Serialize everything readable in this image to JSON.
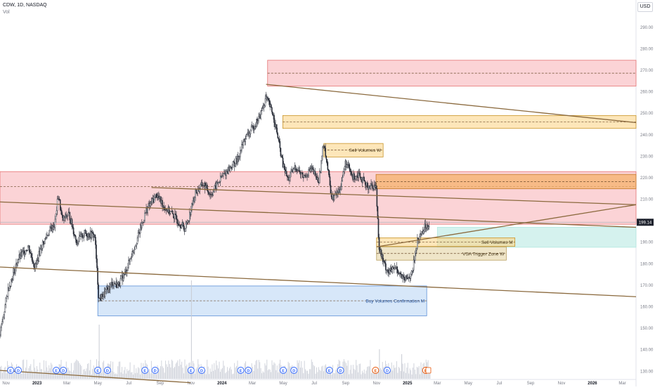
{
  "header": {
    "symbol_line": "CDW, 1D, NASDAQ",
    "volume_label": "Vol",
    "currency": "USD"
  },
  "chart_data": {
    "type": "candlestick",
    "price_axis": {
      "ticks": [
        "290.00",
        "280.00",
        "270.00",
        "260.00",
        "250.00",
        "240.00",
        "230.00",
        "220.00",
        "210.00",
        "200.00",
        "190.00",
        "180.00",
        "170.00",
        "160.00",
        "150.00",
        "140.00",
        "130.00"
      ],
      "range": [
        126,
        296
      ]
    },
    "current_price": {
      "value": 199.14,
      "label": "199.14"
    },
    "time_axis": {
      "ticks": [
        "Nov",
        "2023",
        "Mar",
        "May",
        "Jul",
        "Sep",
        "Nov",
        "2024",
        "Mar",
        "May",
        "Jul",
        "Sep",
        "Nov",
        "2025",
        "Mar",
        "May",
        "Jul",
        "Sep",
        "Nov",
        "2026",
        "Mar"
      ],
      "range": [
        "2022-10-20",
        "2026-03-28"
      ]
    },
    "price_path": [
      [
        "2022-10-20",
        147
      ],
      [
        "2022-11-05",
        168
      ],
      [
        "2022-11-25",
        182
      ],
      [
        "2022-12-15",
        188
      ],
      [
        "2022-12-28",
        178
      ],
      [
        "2023-01-10",
        188
      ],
      [
        "2023-01-25",
        195
      ],
      [
        "2023-02-05",
        198
      ],
      [
        "2023-02-12",
        212
      ],
      [
        "2023-02-20",
        200
      ],
      [
        "2023-03-05",
        203
      ],
      [
        "2023-03-20",
        190
      ],
      [
        "2023-04-05",
        194
      ],
      [
        "2023-04-25",
        193
      ],
      [
        "2023-05-03",
        163
      ],
      [
        "2023-05-15",
        166
      ],
      [
        "2023-05-30",
        171
      ],
      [
        "2023-06-10",
        170
      ],
      [
        "2023-06-25",
        176
      ],
      [
        "2023-07-05",
        183
      ],
      [
        "2023-07-20",
        193
      ],
      [
        "2023-08-05",
        205
      ],
      [
        "2023-08-25",
        212
      ],
      [
        "2023-09-10",
        206
      ],
      [
        "2023-09-25",
        203
      ],
      [
        "2023-10-05",
        200
      ],
      [
        "2023-10-20",
        196
      ],
      [
        "2023-10-27",
        201
      ],
      [
        "2023-11-10",
        213
      ],
      [
        "2023-11-25",
        217
      ],
      [
        "2023-12-10",
        212
      ],
      [
        "2023-12-31",
        220
      ],
      [
        "2024-01-15",
        224
      ],
      [
        "2024-01-31",
        228
      ],
      [
        "2024-02-15",
        238
      ],
      [
        "2024-02-28",
        242
      ],
      [
        "2024-03-15",
        248
      ],
      [
        "2024-03-28",
        257
      ],
      [
        "2024-04-10",
        250
      ],
      [
        "2024-04-20",
        239
      ],
      [
        "2024-04-30",
        226
      ],
      [
        "2024-05-10",
        219
      ],
      [
        "2024-05-25",
        225
      ],
      [
        "2024-06-10",
        220
      ],
      [
        "2024-06-25",
        224
      ],
      [
        "2024-07-10",
        218
      ],
      [
        "2024-07-20",
        237
      ],
      [
        "2024-08-05",
        210
      ],
      [
        "2024-08-20",
        214
      ],
      [
        "2024-09-01",
        227
      ],
      [
        "2024-09-15",
        220
      ],
      [
        "2024-09-28",
        222
      ],
      [
        "2024-10-10",
        216
      ],
      [
        "2024-10-31",
        216
      ],
      [
        "2024-11-06",
        188
      ],
      [
        "2024-11-15",
        180
      ],
      [
        "2024-11-25",
        176
      ],
      [
        "2024-12-10",
        178
      ],
      [
        "2024-12-25",
        172
      ],
      [
        "2025-01-10",
        175
      ],
      [
        "2025-01-20",
        190
      ],
      [
        "2025-02-01",
        196
      ],
      [
        "2025-02-14",
        199
      ]
    ],
    "volume_spikes": [
      [
        "2023-05-03",
        0.55
      ],
      [
        "2023-11-01",
        1.0
      ],
      [
        "2024-11-06",
        0.3
      ],
      [
        "2024-12-20",
        0.25
      ]
    ],
    "zones": [
      {
        "kind": "resistance",
        "x1": "2024-03-31",
        "x2": "2026-03-28",
        "top": 274.5,
        "bottom": 262.5,
        "mid": 268.5
      },
      {
        "kind": "sell",
        "x1": "2024-04-30",
        "x2": "2026-03-28",
        "top": 248.8,
        "bottom": 242.8,
        "mid": 245.8
      },
      {
        "kind": "sell",
        "label": "Sell Volumes W",
        "x1": "2024-07-20",
        "x2": "2024-11-14",
        "top": 235.8,
        "bottom": 229.5,
        "mid": 232.7
      },
      {
        "kind": "resistance",
        "x1": "2022-10-20",
        "x2": "2026-03-28",
        "top": 222.7,
        "bottom": 198.2,
        "mid": 215.8
      },
      {
        "kind": "sell-orange",
        "x1": "2024-10-31",
        "x2": "2026-03-28",
        "top": 221.4,
        "bottom": 214.7,
        "mid": 218.0
      },
      {
        "kind": "target",
        "x1": "2025-03-01",
        "x2": "2026-03-28",
        "top": 196.8,
        "bottom": 187.5
      },
      {
        "kind": "sell",
        "label": "Sell Volumes M",
        "x1": "2024-11-01",
        "x2": "2025-08-01",
        "top": 191.9,
        "bottom": 187.9,
        "mid": 189.9
      },
      {
        "kind": "vsa",
        "label": "VSA Trigger Zone W",
        "x1": "2024-11-01",
        "x2": "2025-07-15",
        "top": 187.7,
        "bottom": 181.5,
        "mid": 184.6
      },
      {
        "kind": "buy",
        "label": "Buy Volumes Confirmation M",
        "x1": "2023-05-01",
        "x2": "2025-02-08",
        "top": 169.5,
        "bottom": 155.6,
        "mid": 162.6
      }
    ],
    "trendlines": [
      {
        "from": [
          "2024-03-28",
          263.3
        ],
        "to": [
          "2026-03-28",
          245.5
        ]
      },
      {
        "from": [
          "2022-10-20",
          208.6
        ],
        "to": [
          "2026-03-28",
          196.8
        ]
      },
      {
        "from": [
          "2023-08-15",
          215.3
        ],
        "to": [
          "2026-03-28",
          207.3
        ]
      },
      {
        "from": [
          "2022-10-20",
          178.3
        ],
        "to": [
          "2026-03-28",
          164.5
        ]
      },
      {
        "from": [
          "2024-11-01",
          187.7
        ],
        "to": [
          "2026-03-28",
          207.3
        ]
      },
      {
        "from": [
          "2022-10-20",
          130.2
        ],
        "to": [
          "2023-10-31",
          124.5
        ]
      }
    ],
    "events": [
      {
        "date": "2022-11-10",
        "type": "E"
      },
      {
        "date": "2022-11-25",
        "type": "D"
      },
      {
        "date": "2023-02-08",
        "type": "E"
      },
      {
        "date": "2023-02-22",
        "type": "D"
      },
      {
        "date": "2023-05-01",
        "type": "E"
      },
      {
        "date": "2023-05-20",
        "type": "D"
      },
      {
        "date": "2023-08-02",
        "type": "E"
      },
      {
        "date": "2023-08-22",
        "type": "D"
      },
      {
        "date": "2023-11-01",
        "type": "E"
      },
      {
        "date": "2023-11-22",
        "type": "D"
      },
      {
        "date": "2024-02-07",
        "type": "E"
      },
      {
        "date": "2024-02-22",
        "type": "D"
      },
      {
        "date": "2024-05-01",
        "type": "E"
      },
      {
        "date": "2024-05-22",
        "type": "D"
      },
      {
        "date": "2024-07-31",
        "type": "E"
      },
      {
        "date": "2024-08-22",
        "type": "D"
      },
      {
        "date": "2024-10-30",
        "type": "E"
      },
      {
        "date": "2024-11-22",
        "type": "D"
      },
      {
        "date": "2025-02-06",
        "type": "E"
      }
    ]
  }
}
